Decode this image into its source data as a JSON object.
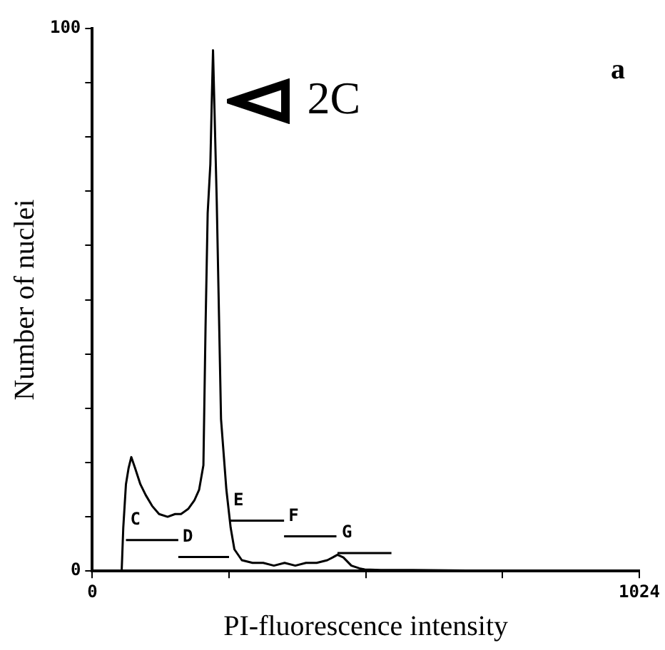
{
  "chart_data": {
    "type": "line",
    "xlabel": "PI-fluorescence intensity",
    "ylabel": "Number of nuclei",
    "xlim": [
      0,
      1024
    ],
    "ylim": [
      0,
      100
    ],
    "xticks": [
      0,
      {
        "value": 256,
        "label": null
      },
      {
        "value": 512,
        "label": null
      },
      {
        "value": 768,
        "label": null
      },
      1024
    ],
    "yticks": [
      0,
      {
        "value": 10,
        "label": null
      },
      {
        "value": 20,
        "label": null
      },
      {
        "value": 30,
        "label": null
      },
      {
        "value": 40,
        "label": null
      },
      {
        "value": 50,
        "label": null
      },
      {
        "value": 60,
        "label": null
      },
      {
        "value": 70,
        "label": null
      },
      {
        "value": 80,
        "label": null
      },
      {
        "value": 90,
        "label": null
      },
      100
    ],
    "grid": false,
    "legend": false,
    "marker": "none",
    "line_style": "solid",
    "series": [
      {
        "type": "line",
        "color": "#000000",
        "x": [
          0,
          55,
          58,
          63,
          68,
          73,
          80,
          90,
          100,
          112,
          125,
          141,
          155,
          166,
          180,
          191,
          200,
          208,
          212,
          216,
          221,
          224,
          226,
          228,
          233,
          241,
          251,
          259,
          266,
          280,
          300,
          320,
          340,
          360,
          380,
          400,
          420,
          440,
          450,
          459,
          470,
          485,
          500,
          510,
          540,
          600,
          700,
          800,
          900,
          1024
        ],
        "values": [
          0,
          0,
          8,
          16,
          19,
          21,
          19,
          16,
          14,
          12,
          10.5,
          10,
          10.5,
          10.5,
          11.5,
          13,
          15,
          19.5,
          45,
          66,
          75,
          88,
          96,
          88,
          68,
          28,
          15,
          8,
          4,
          2,
          1.5,
          1.5,
          1,
          1.5,
          1,
          1.5,
          1.5,
          2,
          2.5,
          3,
          2.5,
          1,
          0.5,
          0.3,
          0.2,
          0.2,
          0.1,
          0.1,
          0.1,
          0
        ]
      },
      {
        "type": "line",
        "color": "#000000",
        "x": [
          63,
          161
        ],
        "values": [
          5.7,
          5.7
        ]
      },
      {
        "type": "line",
        "color": "#000000",
        "x": [
          161,
          256
        ],
        "values": [
          2.6,
          2.6
        ]
      },
      {
        "type": "line",
        "color": "#000000",
        "x": [
          256,
          359
        ],
        "values": [
          9.3,
          9.3
        ]
      },
      {
        "type": "line",
        "color": "#000000",
        "x": [
          359,
          457
        ],
        "values": [
          6.4,
          6.4
        ]
      },
      {
        "type": "line",
        "color": "#000000",
        "x": [
          459,
          560
        ],
        "values": [
          3.3,
          3.3
        ]
      }
    ],
    "annotations": [
      "a",
      "2C",
      "C",
      "D",
      "E",
      "F",
      "G"
    ]
  }
}
